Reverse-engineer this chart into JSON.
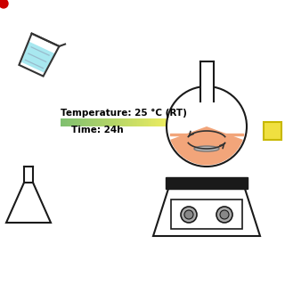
{
  "bg_color": "#ffffff",
  "temp_text": "Temperature: 25 °C (RT)",
  "time_text": "Time: 24h",
  "text_color": "#000000",
  "arrow_color": "#d4a000",
  "flask_liquid_color": "#f2a57a",
  "flask_outline_color": "#1a1a1a",
  "hotplate_color": "#1a1a1a",
  "beaker_liquid_color": "#a8e8f0",
  "beaker_outline_color": "#333333",
  "product_color": "#f0e040",
  "product_border": "#c8b800",
  "stir_bar_color": "#bbbbbb",
  "red_dot_color": "#cc0000",
  "knob_color": "#aaaaaa",
  "knob_inner": "#888888"
}
